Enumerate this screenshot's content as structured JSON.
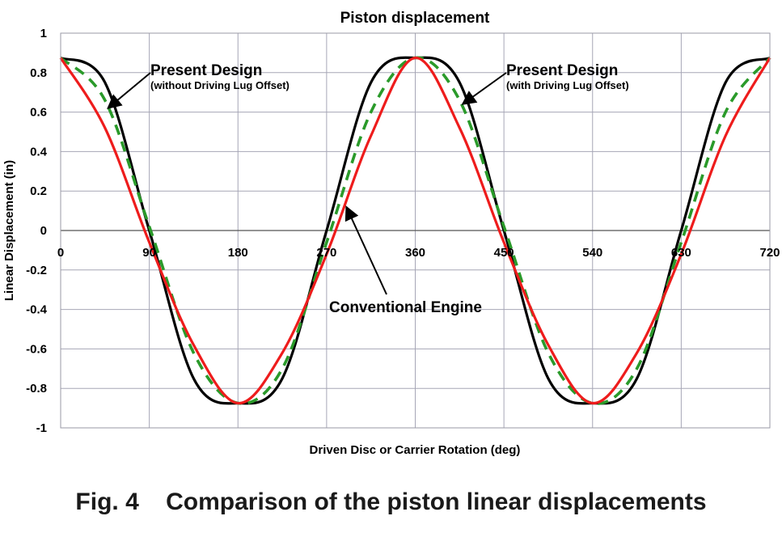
{
  "figure": {
    "caption": "Fig. 4    Comparison of the piston linear displacements"
  },
  "colors": {
    "present_no_offset": "#000000",
    "present_with_offset": "#2a9a2a",
    "conventional": "#ee1c1c",
    "grid": "#a6a6b6",
    "axis": "#555555",
    "text": "#000000"
  },
  "chart_data": {
    "type": "line",
    "title": "Piston displacement",
    "xlabel": "Driven Disc or Carrier Rotation (deg)",
    "ylabel": "Linear Displacement (in)",
    "xlim": [
      0,
      720
    ],
    "ylim": [
      -1,
      1
    ],
    "x_ticks": [
      0,
      90,
      180,
      270,
      360,
      450,
      540,
      630,
      720
    ],
    "x_tick_labels": [
      "0",
      "90",
      "180",
      "270",
      "360",
      "450",
      "540",
      "630",
      "720"
    ],
    "y_ticks": [
      1,
      0.8,
      0.6,
      0.4,
      0.2,
      0,
      -0.2,
      -0.4,
      -0.6,
      -0.8,
      -1
    ],
    "y_tick_labels": [
      "1",
      "0.8",
      "0.6",
      "0.4",
      "0.2",
      "0",
      "-0.2",
      "-0.4",
      "-0.6",
      "-0.8",
      "-1"
    ],
    "grid": "vertical-and-horizontal",
    "amplitude": 0.875,
    "series": [
      {
        "name": "Present Design (without Driving Lug Offset)",
        "style": "solid",
        "color": "#000000",
        "x": [
          0,
          45,
          90,
          135,
          180,
          225,
          270,
          315,
          360,
          405,
          450,
          495,
          540,
          585,
          630,
          675,
          720
        ],
        "y": [
          0.875,
          0.75,
          0.0,
          -0.75,
          -0.875,
          -0.75,
          0.0,
          0.75,
          0.875,
          0.75,
          0.0,
          -0.75,
          -0.875,
          -0.75,
          0.0,
          0.75,
          0.875
        ]
      },
      {
        "name": "Present Design (with Driving Lug Offset)",
        "style": "dashed",
        "color": "#2a9a2a",
        "x": [
          0,
          45,
          90,
          135,
          180,
          225,
          270,
          315,
          360,
          405,
          450,
          495,
          540,
          585,
          630,
          675,
          720
        ],
        "y": [
          0.875,
          0.66,
          0.02,
          -0.62,
          -0.875,
          -0.7,
          -0.06,
          0.6,
          0.875,
          0.66,
          0.02,
          -0.62,
          -0.875,
          -0.7,
          -0.06,
          0.6,
          0.875
        ]
      },
      {
        "name": "Conventional Engine",
        "style": "solid",
        "color": "#ee1c1c",
        "x": [
          0,
          45,
          90,
          135,
          180,
          225,
          270,
          315,
          360,
          405,
          450,
          495,
          540,
          585,
          630,
          675,
          720
        ],
        "y": [
          0.875,
          0.52,
          -0.06,
          -0.58,
          -0.875,
          -0.62,
          -0.12,
          0.48,
          0.875,
          0.52,
          -0.06,
          -0.58,
          -0.875,
          -0.62,
          -0.12,
          0.48,
          0.875
        ]
      }
    ],
    "annotations": [
      {
        "title": "Present Design",
        "subtitle": "(without Driving Lug Offset)",
        "points_to_series": "Present Design (without Driving Lug Offset)",
        "target": [
          48,
          0.62
        ]
      },
      {
        "title": "Present Design",
        "subtitle": "(with Driving Lug Offset)",
        "points_to_series": "Present Design (with Driving Lug Offset)",
        "target": [
          408,
          0.64
        ]
      },
      {
        "title": "Conventional Engine",
        "subtitle": "",
        "points_to_series": "Conventional Engine",
        "target": [
          290,
          0.12
        ]
      }
    ]
  }
}
